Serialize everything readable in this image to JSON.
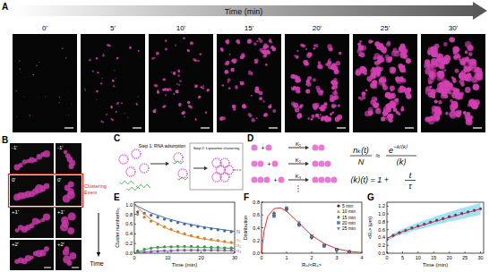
{
  "panels": {
    "A": {
      "label": "A",
      "axis_label": "Time (min)",
      "frames": [
        "0'",
        "5'",
        "10'",
        "15'",
        "20'",
        "25'",
        "30'"
      ]
    },
    "B": {
      "label": "B",
      "rows": [
        "-1'",
        "0'",
        "+1'",
        "+2'"
      ],
      "event": "Clustering Event",
      "axis_label": "Time"
    },
    "C": {
      "label": "C",
      "step1": "Step 1: RNA adsorption",
      "step2": "Step 2: Liposome clustering"
    },
    "D": {
      "label": "D",
      "rates": [
        "K₁",
        "K₂",
        "K₃"
      ],
      "equation1": {
        "num": "nₖ(t)",
        "den": "N",
        "approx": "≈",
        "exp_base": "e",
        "exp_power": "−k/⟨k⟩",
        "exp_den": "⟨k⟩"
      },
      "equation2": {
        "lhs": "⟨k⟩(t) = 1 +",
        "num": "t",
        "den": "τ"
      }
    },
    "E": {
      "label": "E"
    },
    "F": {
      "label": "F"
    },
    "G": {
      "label": "G"
    }
  },
  "chart_data": [
    {
      "type": "scatter",
      "x_label": "Time (min)",
      "y_label": "Cluster number/n₀",
      "xlim": [
        0,
        30
      ],
      "ylim": [
        0,
        1.05
      ],
      "xticks": [
        0,
        10,
        20,
        30
      ],
      "yticks": [
        {
          "value": 0,
          "label": "0.0"
        },
        {
          "value": 0.2,
          "label": "0.2"
        },
        {
          "value": 0.4,
          "label": "0.4"
        },
        {
          "value": 0.6,
          "label": "0.6"
        },
        {
          "value": 0.8,
          "label": "0.8"
        },
        {
          "value": 1,
          "label": "1.0"
        }
      ],
      "legend": "right",
      "series": [
        {
          "name": "N",
          "color": "#3b6fb6",
          "type": "scatter",
          "marker": "circle",
          "x": [
            1,
            3,
            5,
            7,
            9,
            11,
            13,
            15,
            17,
            19,
            21,
            23,
            25,
            27,
            29
          ],
          "values": [
            0.85,
            0.82,
            0.78,
            0.74,
            0.7,
            0.67,
            0.63,
            0.6,
            0.57,
            0.55,
            0.52,
            0.5,
            0.48,
            0.46,
            0.44
          ]
        },
        {
          "name": "n₁",
          "color": "#f08a24",
          "type": "scatter",
          "marker": "circle",
          "x": [
            1,
            3,
            5,
            7,
            9,
            11,
            13,
            15,
            17,
            19,
            21,
            23,
            25,
            27,
            29
          ],
          "values": [
            0.8,
            0.74,
            0.66,
            0.6,
            0.54,
            0.49,
            0.44,
            0.4,
            0.36,
            0.33,
            0.3,
            0.28,
            0.26,
            0.24,
            0.22
          ]
        },
        {
          "name": "n₂",
          "color": "#3aa346",
          "type": "scatter",
          "marker": "circle",
          "x": [
            1,
            3,
            5,
            7,
            9,
            11,
            13,
            15,
            17,
            19,
            21,
            23,
            25,
            27,
            29
          ],
          "values": [
            0.05,
            0.08,
            0.1,
            0.12,
            0.13,
            0.13,
            0.14,
            0.14,
            0.14,
            0.13,
            0.13,
            0.12,
            0.12,
            0.11,
            0.11
          ]
        },
        {
          "name": "n₃",
          "color": "#8e5fb5",
          "type": "scatter",
          "marker": "circle",
          "x": [
            1,
            3,
            5,
            7,
            9,
            11,
            13,
            15,
            17,
            19,
            21,
            23,
            25,
            27,
            29
          ],
          "values": [
            0.01,
            0.02,
            0.03,
            0.04,
            0.05,
            0.05,
            0.06,
            0.06,
            0.06,
            0.06,
            0.06,
            0.06,
            0.06,
            0.06,
            0.06
          ]
        },
        {
          "color": "#3b6fb6",
          "type": "line",
          "line_style": "solid",
          "x": [
            0,
            5,
            10,
            15,
            20,
            25,
            30
          ],
          "values": [
            1,
            0.83,
            0.71,
            0.62,
            0.55,
            0.5,
            0.45
          ]
        },
        {
          "color": "#f08a24",
          "type": "line",
          "line_style": "solid",
          "x": [
            0,
            5,
            10,
            15,
            20,
            25,
            30
          ],
          "values": [
            1,
            0.69,
            0.5,
            0.38,
            0.3,
            0.25,
            0.2
          ]
        },
        {
          "color": "#3aa346",
          "type": "line",
          "line_style": "solid",
          "x": [
            0,
            5,
            10,
            15,
            20,
            25,
            30
          ],
          "values": [
            0,
            0.11,
            0.13,
            0.13,
            0.12,
            0.11,
            0.1
          ]
        },
        {
          "color": "#8e5fb5",
          "type": "line",
          "line_style": "solid",
          "x": [
            0,
            5,
            10,
            15,
            20,
            25,
            30
          ],
          "values": [
            0,
            0.04,
            0.05,
            0.06,
            0.06,
            0.06,
            0.05
          ]
        }
      ]
    },
    {
      "type": "scatter",
      "x_label": "Rₛ/<Rₛ>",
      "y_label": "Distribution",
      "xlim": [
        0,
        4
      ],
      "ylim": [
        0,
        0.8
      ],
      "xticks": [
        0,
        1,
        2,
        3,
        4
      ],
      "yticks": [
        {
          "value": 0,
          "label": "0.0"
        },
        {
          "value": 0.2,
          "label": "0.2"
        },
        {
          "value": 0.4,
          "label": "0.4"
        },
        {
          "value": 0.6,
          "label": "0.6"
        },
        {
          "value": 0.8,
          "label": "0.8"
        }
      ],
      "legend": "upper right",
      "series": [
        {
          "color": "#e03030",
          "type": "line",
          "line_style": "solid",
          "x": [
            0,
            0.1,
            0.25,
            0.5,
            0.75,
            1,
            1.5,
            2,
            2.5,
            3,
            3.5,
            4
          ],
          "values": [
            0,
            0.35,
            0.58,
            0.7,
            0.71,
            0.66,
            0.47,
            0.28,
            0.15,
            0.07,
            0.03,
            0.01
          ]
        },
        {
          "name": "5 min",
          "color": "#8b1a1a",
          "type": "scatter",
          "marker": "circle",
          "x": [
            0.5,
            1,
            1.5,
            2,
            2.5,
            3,
            3.5
          ],
          "values": [
            0.62,
            0.7,
            0.45,
            0.25,
            0.12,
            0.05,
            0.02
          ]
        },
        {
          "name": "10 min",
          "color": "#e8c12e",
          "type": "scatter",
          "marker": "triangle",
          "x": [
            0.5,
            1,
            1.5,
            2,
            2.5,
            3,
            3.5
          ],
          "values": [
            0.6,
            0.68,
            0.47,
            0.26,
            0.13,
            0.06,
            0.02
          ]
        },
        {
          "name": "15 min",
          "color": "#2e8b57",
          "type": "scatter",
          "marker": "diamond",
          "x": [
            0.5,
            1,
            1.5,
            2,
            2.5,
            3,
            3.5
          ],
          "values": [
            0.63,
            0.69,
            0.46,
            0.24,
            0.12,
            0.05,
            0.03
          ]
        },
        {
          "name": "20 min",
          "color": "#4a7bd0",
          "type": "scatter",
          "marker": "square",
          "x": [
            0.5,
            1,
            1.5,
            2,
            2.5,
            3,
            3.5
          ],
          "values": [
            0.58,
            0.71,
            0.44,
            0.27,
            0.11,
            0.06,
            0.02
          ]
        },
        {
          "name": "25 min",
          "color": "#9a8fb0",
          "type": "scatter",
          "marker": "inverted-triangle",
          "x": [
            0.5,
            1,
            1.5,
            2,
            2.5,
            3,
            3.5
          ],
          "values": [
            0.61,
            0.67,
            0.48,
            0.25,
            0.13,
            0.04,
            0.02
          ]
        }
      ]
    },
    {
      "type": "scatter",
      "x_label": "Time (min)",
      "y_label": "<Rₛ> (μm)",
      "xlim": [
        0,
        31
      ],
      "ylim": [
        0,
        1.3
      ],
      "xticks": [
        0,
        5,
        10,
        15,
        20,
        25,
        30
      ],
      "yticks": [
        {
          "value": 0,
          "label": "0.0"
        },
        {
          "value": 0.2,
          "label": "0.2"
        },
        {
          "value": 0.4,
          "label": "0.4"
        },
        {
          "value": 0.6,
          "label": "0.6"
        },
        {
          "value": 0.8,
          "label": "0.8"
        },
        {
          "value": 1,
          "label": "1.0"
        },
        {
          "value": 1.2,
          "label": "1.2"
        }
      ],
      "series": [
        {
          "color": "#3d3d8f",
          "type": "scatter",
          "marker": "circle",
          "x": [
            0,
            2,
            4,
            6,
            8,
            10,
            12,
            14,
            16,
            18,
            20,
            22,
            24,
            26,
            28,
            30
          ],
          "values": [
            0.35,
            0.45,
            0.52,
            0.58,
            0.64,
            0.69,
            0.74,
            0.79,
            0.84,
            0.88,
            0.93,
            0.97,
            1.01,
            1.05,
            1.09,
            1.13
          ],
          "error": [
            0.04,
            0.05,
            0.06,
            0.07,
            0.08,
            0.09,
            0.1,
            0.1,
            0.11,
            0.12,
            0.12,
            0.13,
            0.14,
            0.14,
            0.15,
            0.15
          ]
        },
        {
          "color": "#e03030",
          "type": "line",
          "line_style": "solid",
          "x": [
            0,
            5,
            10,
            15,
            20,
            25,
            30
          ],
          "values": [
            0.38,
            0.55,
            0.68,
            0.8,
            0.91,
            1.02,
            1.13
          ]
        }
      ]
    }
  ]
}
